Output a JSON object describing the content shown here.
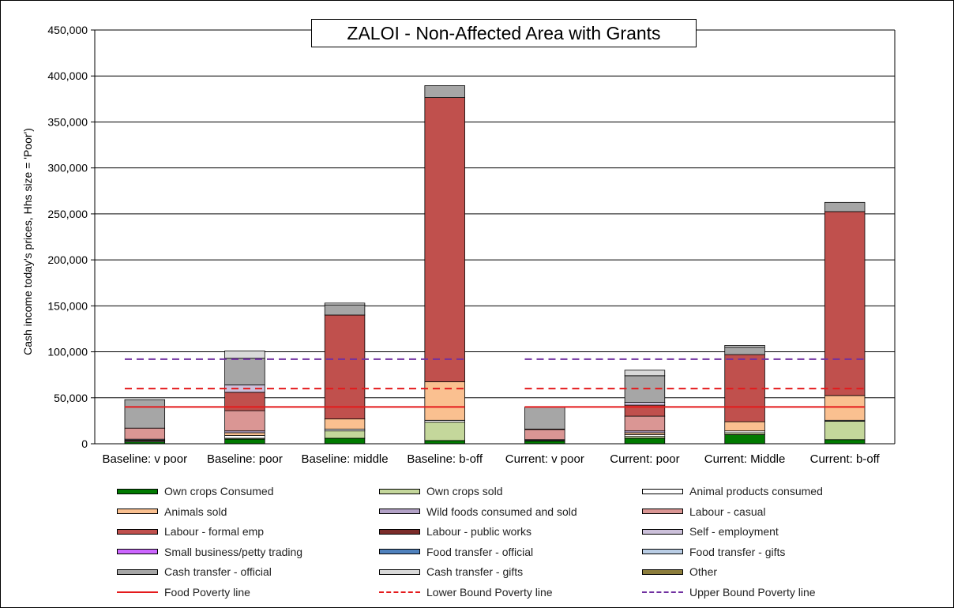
{
  "chart_data": {
    "type": "bar",
    "stacked": true,
    "title": "ZALOI - Non-Affected Area with Grants",
    "ylabel": "Cash income today's prices, Hhs size = 'Poor')",
    "xlabel": "",
    "ylim": [
      0,
      450000
    ],
    "yticks": [
      0,
      50000,
      100000,
      150000,
      200000,
      250000,
      300000,
      350000,
      400000,
      450000
    ],
    "ytick_labels": [
      "0",
      "50,000",
      "100,000",
      "150,000",
      "200,000",
      "250,000",
      "300,000",
      "350,000",
      "400,000",
      "450,000"
    ],
    "grid": true,
    "legend_position": "bottom",
    "categories": [
      "Baseline: v poor",
      "Baseline: poor",
      "Baseline: middle",
      "Baseline: b-off",
      "Current: v poor",
      "Current: poor",
      "Current: Middle",
      "Current: b-off"
    ],
    "series": [
      {
        "name": "Own crops Consumed",
        "color": "#007a00",
        "values": [
          2000,
          5000,
          6000,
          3500,
          3000,
          6000,
          10000,
          4500
        ]
      },
      {
        "name": "Own crops sold",
        "color": "#c4d79b",
        "values": [
          0,
          1000,
          8000,
          20000,
          0,
          2000,
          2000,
          20000
        ]
      },
      {
        "name": "Animal products consumed",
        "color": "#ffffff",
        "values": [
          1000,
          3000,
          2000,
          2000,
          500,
          2000,
          2000,
          1000
        ]
      },
      {
        "name": "Animals sold",
        "color": "#fac090",
        "values": [
          1000,
          3000,
          11000,
          42000,
          0,
          2000,
          10000,
          27000
        ]
      },
      {
        "name": "Wild foods consumed and sold",
        "color": "#b3a2c7",
        "values": [
          1000,
          2000,
          0,
          0,
          1000,
          2000,
          0,
          0
        ]
      },
      {
        "name": "Labour - casual",
        "color": "#da9694",
        "values": [
          12000,
          22000,
          0,
          0,
          11000,
          16000,
          0,
          0
        ]
      },
      {
        "name": "Labour - formal emp",
        "color": "#c0504d",
        "values": [
          0,
          20000,
          113000,
          309000,
          0,
          12000,
          73000,
          200000
        ]
      },
      {
        "name": "Labour - public works",
        "color": "#7b2c2a",
        "values": [
          0,
          0,
          0,
          0,
          0,
          0,
          0,
          0
        ]
      },
      {
        "name": "Self - employment",
        "color": "#ccc0da",
        "values": [
          0,
          8000,
          0,
          0,
          0,
          3000,
          0,
          0
        ]
      },
      {
        "name": "Small business/petty trading",
        "color": "#cc66ff",
        "values": [
          0,
          0,
          0,
          0,
          0,
          0,
          0,
          0
        ]
      },
      {
        "name": "Food transfer - official",
        "color": "#4f81bd",
        "values": [
          0,
          0,
          0,
          0,
          500,
          0,
          0,
          0
        ]
      },
      {
        "name": "Food transfer - gifts",
        "color": "#b9cde5",
        "values": [
          0,
          0,
          0,
          0,
          0,
          0,
          0,
          0
        ]
      },
      {
        "name": "Cash transfer - official",
        "color": "#a6a6a6",
        "values": [
          31000,
          29000,
          11000,
          13000,
          24000,
          29000,
          8000,
          10000
        ]
      },
      {
        "name": "Cash transfer - gifts",
        "color": "#d9d9d9",
        "values": [
          0,
          8000,
          2000,
          0,
          0,
          6000,
          2000,
          0
        ]
      },
      {
        "name": "Other",
        "color": "#8c7d3c",
        "values": [
          0,
          0,
          0,
          0,
          0,
          0,
          0,
          0
        ]
      }
    ],
    "reference_lines": [
      {
        "name": "Food Poverty line",
        "color": "#e41a1c",
        "style": "solid",
        "value": 40000,
        "groups": [
          [
            0,
            3
          ],
          [
            4,
            7
          ]
        ]
      },
      {
        "name": "Lower Bound Poverty line",
        "color": "#e41a1c",
        "style": "dashed",
        "value": 60000,
        "groups": [
          [
            0,
            3
          ],
          [
            4,
            7
          ]
        ]
      },
      {
        "name": "Upper Bound Poverty line",
        "color": "#7030a0",
        "style": "dashed",
        "value": 92000,
        "groups": [
          [
            0,
            3
          ],
          [
            4,
            7
          ]
        ]
      }
    ]
  }
}
